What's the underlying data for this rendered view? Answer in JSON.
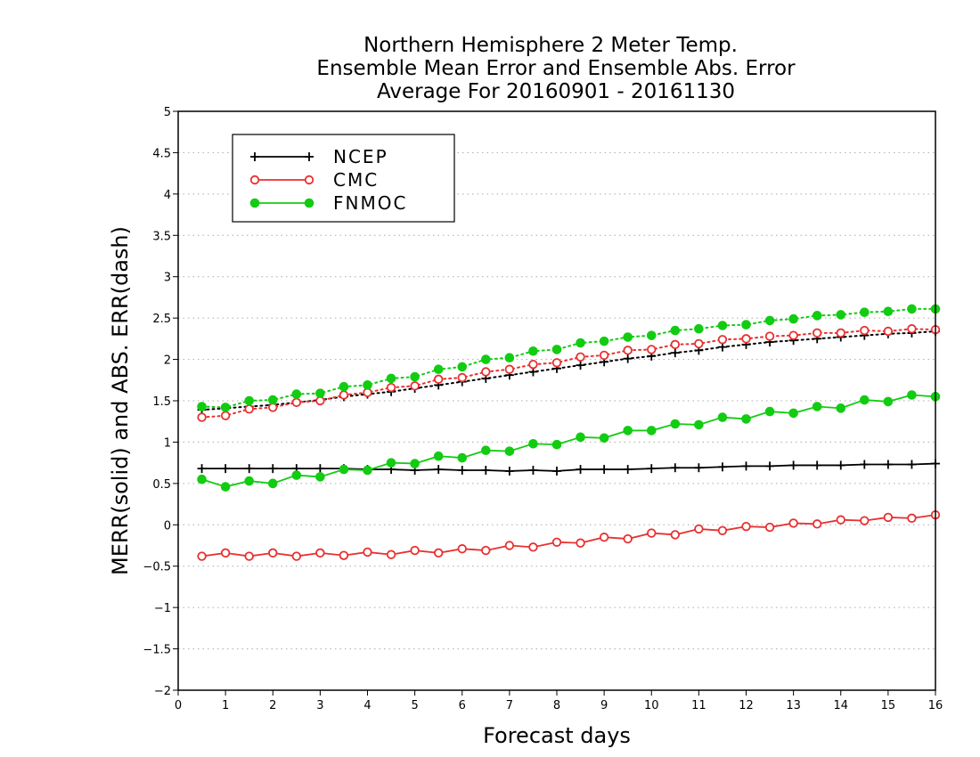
{
  "chart_data": {
    "type": "line",
    "title_lines": [
      "Northern Hemisphere 2 Meter Temp.",
      "Ensemble Mean Error and Ensemble Abs. Error",
      "Average For 20160901 - 20161130"
    ],
    "xlabel": "Forecast days",
    "ylabel": "MERR(solid) and ABS. ERR(dash)",
    "xlim": [
      0,
      16
    ],
    "ylim": [
      -2,
      5
    ],
    "xticks": [
      "0",
      "1",
      "2",
      "3",
      "4",
      "5",
      "6",
      "7",
      "8",
      "9",
      "10",
      "11",
      "12",
      "13",
      "14",
      "15",
      "16"
    ],
    "yticks": [
      "−2",
      "−1.5",
      "−1",
      "−0.5",
      "0",
      "0.5",
      "1",
      "1.5",
      "2",
      "2.5",
      "3",
      "3.5",
      "4",
      "4.5",
      "5"
    ],
    "grid": "horizontal dotted",
    "legend_position": "top-left",
    "x": [
      0.5,
      1,
      1.5,
      2,
      2.5,
      3,
      3.5,
      4,
      4.5,
      5,
      5.5,
      6,
      6.5,
      7,
      7.5,
      8,
      8.5,
      9,
      9.5,
      10,
      10.5,
      11,
      11.5,
      12,
      12.5,
      13,
      13.5,
      14,
      14.5,
      15,
      15.5,
      16
    ],
    "series": [
      {
        "name": "NCEP",
        "color": "#000000",
        "marker": "plus",
        "merr": [
          0.68,
          0.68,
          0.68,
          0.68,
          0.68,
          0.68,
          0.68,
          0.67,
          0.67,
          0.66,
          0.67,
          0.66,
          0.66,
          0.65,
          0.66,
          0.65,
          0.67,
          0.67,
          0.67,
          0.68,
          0.69,
          0.69,
          0.7,
          0.71,
          0.71,
          0.72,
          0.72,
          0.72,
          0.73,
          0.73,
          0.73,
          0.74
        ],
        "abs_err": [
          1.39,
          1.41,
          1.43,
          1.45,
          1.48,
          1.51,
          1.55,
          1.58,
          1.61,
          1.65,
          1.69,
          1.73,
          1.77,
          1.81,
          1.85,
          1.89,
          1.93,
          1.97,
          2.01,
          2.04,
          2.08,
          2.11,
          2.15,
          2.18,
          2.21,
          2.23,
          2.25,
          2.27,
          2.29,
          2.31,
          2.32,
          2.34
        ]
      },
      {
        "name": "CMC",
        "color": "#e83030",
        "marker": "open-circle",
        "merr": [
          -0.38,
          -0.34,
          -0.38,
          -0.34,
          -0.38,
          -0.34,
          -0.37,
          -0.33,
          -0.36,
          -0.31,
          -0.34,
          -0.29,
          -0.31,
          -0.25,
          -0.27,
          -0.21,
          -0.22,
          -0.15,
          -0.17,
          -0.1,
          -0.12,
          -0.05,
          -0.07,
          -0.02,
          -0.03,
          0.02,
          0.01,
          0.06,
          0.05,
          0.09,
          0.08,
          0.12
        ],
        "abs_err": [
          1.3,
          1.32,
          1.4,
          1.42,
          1.48,
          1.5,
          1.57,
          1.6,
          1.66,
          1.68,
          1.76,
          1.78,
          1.85,
          1.88,
          1.94,
          1.96,
          2.03,
          2.05,
          2.11,
          2.12,
          2.18,
          2.19,
          2.24,
          2.25,
          2.28,
          2.29,
          2.32,
          2.32,
          2.35,
          2.34,
          2.37,
          2.36
        ]
      },
      {
        "name": "FNMOC",
        "color": "#12cc12",
        "marker": "filled-circle",
        "merr": [
          0.55,
          0.46,
          0.53,
          0.5,
          0.6,
          0.58,
          0.67,
          0.66,
          0.75,
          0.74,
          0.83,
          0.81,
          0.9,
          0.89,
          0.98,
          0.97,
          1.06,
          1.05,
          1.14,
          1.14,
          1.22,
          1.21,
          1.3,
          1.28,
          1.37,
          1.35,
          1.43,
          1.41,
          1.51,
          1.49,
          1.57,
          1.55
        ],
        "abs_err": [
          1.43,
          1.42,
          1.5,
          1.51,
          1.58,
          1.59,
          1.67,
          1.69,
          1.77,
          1.79,
          1.88,
          1.91,
          2.0,
          2.02,
          2.1,
          2.12,
          2.2,
          2.22,
          2.27,
          2.29,
          2.35,
          2.37,
          2.41,
          2.42,
          2.47,
          2.49,
          2.53,
          2.54,
          2.57,
          2.58,
          2.61,
          2.61
        ]
      }
    ]
  }
}
